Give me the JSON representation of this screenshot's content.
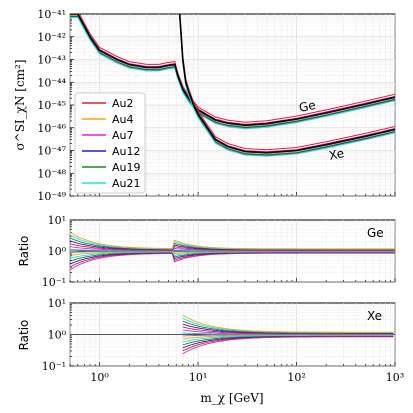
{
  "chart_data": [
    {
      "type": "line",
      "panel": "main",
      "x_scale": "log",
      "y_scale": "log",
      "xlim": [
        0.5,
        1000
      ],
      "ylim": [
        1e-49,
        1e-41
      ],
      "ylabel": "σ^SI_χN [cm²]",
      "y_ticks": [
        "10⁻⁴¹",
        "10⁻⁴²",
        "10⁻⁴³",
        "10⁻⁴⁴",
        "10⁻⁴⁵",
        "10⁻⁴⁶",
        "10⁻⁴⁷",
        "10⁻⁴⁸",
        "10⁻⁴⁹"
      ],
      "grid": true,
      "legend_position": "lower-left",
      "legend": [
        {
          "name": "Au2",
          "color": "#d62728"
        },
        {
          "name": "Au4",
          "color": "#ff9f1a"
        },
        {
          "name": "Au7",
          "color": "#e81ee0"
        },
        {
          "name": "Au12",
          "color": "#1f1fcc"
        },
        {
          "name": "Au19",
          "color": "#1a8a1a"
        },
        {
          "name": "Au21",
          "color": "#22e0e0"
        }
      ],
      "annotations": [
        "Ge",
        "Xe"
      ],
      "series": [
        {
          "target": "Ge",
          "x": [
            0.5,
            0.6,
            0.8,
            1.0,
            1.5,
            2.0,
            3.0,
            4.0,
            5.0,
            5.8,
            6.2,
            7.0,
            8.0,
            10,
            15,
            20,
            30,
            50,
            100,
            200,
            500,
            1000
          ],
          "y": [
            1e-41,
            1e-41,
            1e-42,
            2.5e-43,
            1e-43,
            6e-44,
            4.5e-44,
            4.5e-44,
            5.5e-44,
            6e-44,
            2e-44,
            5e-45,
            2e-45,
            6e-46,
            2.2e-46,
            1.6e-46,
            1.3e-46,
            1.5e-46,
            2.4e-46,
            4.5e-46,
            1.1e-45,
            2.2e-45
          ]
        },
        {
          "target": "Xe",
          "x": [
            6.5,
            7.0,
            7.5,
            8.0,
            9.0,
            10,
            15,
            20,
            30,
            50,
            100,
            200,
            500,
            1000
          ],
          "y": [
            1e-41,
            1e-43,
            1e-44,
            4e-45,
            1e-45,
            4e-46,
            3e-47,
            1.5e-47,
            9e-48,
            8e-48,
            1e-47,
            1.8e-47,
            4.2e-47,
            8.5e-47
          ]
        }
      ]
    },
    {
      "type": "line",
      "panel": "ratio-Ge",
      "title_label": "Ge",
      "x_scale": "log",
      "y_scale": "log",
      "xlim": [
        0.5,
        1000
      ],
      "ylim": [
        0.1,
        10
      ],
      "ylabel": "Ratio",
      "y_ticks": [
        "10¹",
        "10⁰",
        "10⁻¹"
      ],
      "reference_line": 1
    },
    {
      "type": "line",
      "panel": "ratio-Xe",
      "title_label": "Xe",
      "x_scale": "log",
      "y_scale": "log",
      "xlim": [
        0.5,
        1000
      ],
      "ylim": [
        0.1,
        10
      ],
      "ylabel": "Ratio",
      "xlabel": "m_χ [GeV]",
      "y_ticks": [
        "10¹",
        "10⁰",
        "10⁻¹"
      ],
      "x_ticks": [
        "10⁰",
        "10¹",
        "10²",
        "10³"
      ],
      "reference_line": 1
    }
  ]
}
